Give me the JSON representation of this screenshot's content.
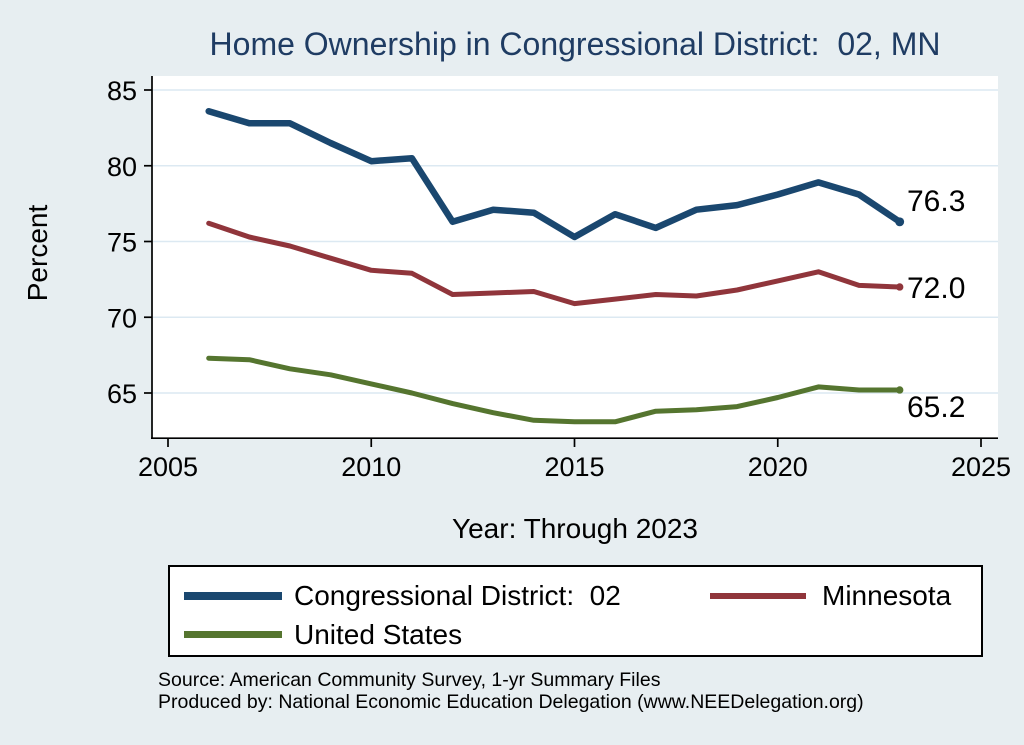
{
  "title_color": "#1f3c63",
  "chart_data": {
    "type": "line",
    "title": "Home Ownership in Congressional District:  02, MN",
    "xlabel": "Year: Through 2023",
    "ylabel": "Percent",
    "grid": "horizontal",
    "legend_position": "bottom-box",
    "xlim": [
      2005,
      2025.4
    ],
    "ylim": [
      62.1,
      85.9
    ],
    "x_ticks": [
      2005,
      2010,
      2015,
      2020,
      2025
    ],
    "y_ticks": [
      85,
      80,
      75,
      70,
      65
    ],
    "x": [
      2006,
      2007,
      2008,
      2009,
      2010,
      2011,
      2012,
      2013,
      2014,
      2015,
      2016,
      2017,
      2018,
      2019,
      2020,
      2021,
      2022,
      2023
    ],
    "series": [
      {
        "name": "Congressional District:  02",
        "color": "#1a476f",
        "line_width": 6.5,
        "end_label": "76.3",
        "end_label_pos": "above",
        "values": [
          83.6,
          82.8,
          82.8,
          81.5,
          80.3,
          80.5,
          76.3,
          77.1,
          76.9,
          75.3,
          76.8,
          75.9,
          77.1,
          77.4,
          78.1,
          78.9,
          78.1,
          76.3
        ]
      },
      {
        "name": "Minnesota",
        "color": "#90353b",
        "line_width": 5,
        "end_label": "72.0",
        "end_label_pos": "middle",
        "values": [
          76.2,
          75.3,
          74.7,
          73.9,
          73.1,
          72.9,
          71.5,
          71.6,
          71.7,
          70.9,
          71.2,
          71.5,
          71.4,
          71.8,
          72.4,
          73.0,
          72.1,
          72.0
        ]
      },
      {
        "name": "United States",
        "color": "#55752f",
        "line_width": 5,
        "end_label": "65.2",
        "end_label_pos": "below",
        "values": [
          67.3,
          67.2,
          66.6,
          66.2,
          65.6,
          65.0,
          64.3,
          63.7,
          63.2,
          63.1,
          63.1,
          63.8,
          63.9,
          64.1,
          64.7,
          65.4,
          65.2,
          65.2
        ]
      }
    ]
  },
  "source": {
    "line1": "Source: American Community Survey, 1-yr Summary Files",
    "line2": "Produced by: National Economic Education Delegation (www.NEEDelegation.org)"
  }
}
